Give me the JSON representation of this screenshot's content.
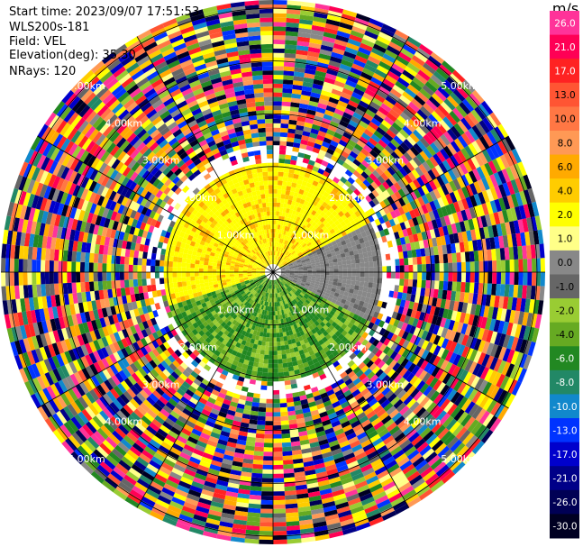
{
  "plot": {
    "start_time": "Start time: 2023/09/07 17:51:53",
    "instrument": "WLS200s-181",
    "field": "Field: VEL",
    "elevation": "Elevation(deg): 35.30",
    "nrays": "NRays: 120"
  },
  "colorbar": {
    "unit": "m/s",
    "levels": [
      {
        "label": "26.0",
        "color": "#ff3399"
      },
      {
        "label": "21.0",
        "color": "#ff0055"
      },
      {
        "label": "17.0",
        "color": "#ff2222"
      },
      {
        "label": "13.0",
        "color": "#ff5533"
      },
      {
        "label": "10.0",
        "color": "#ff7744"
      },
      {
        "label": "8.0",
        "color": "#ff9955"
      },
      {
        "label": "6.0",
        "color": "#ffaa00"
      },
      {
        "label": "4.0",
        "color": "#ffcc00"
      },
      {
        "label": "2.0",
        "color": "#ffff00"
      },
      {
        "label": "1.0",
        "color": "#ffff88"
      },
      {
        "label": "0.0",
        "color": "#888888"
      },
      {
        "label": "-1.0",
        "color": "#666666"
      },
      {
        "label": "-2.0",
        "color": "#99cc33"
      },
      {
        "label": "-4.0",
        "color": "#66aa22"
      },
      {
        "label": "-6.0",
        "color": "#228822"
      },
      {
        "label": "-8.0",
        "color": "#228866"
      },
      {
        "label": "-10.0",
        "color": "#1188cc"
      },
      {
        "label": "-13.0",
        "color": "#0033ff"
      },
      {
        "label": "-17.0",
        "color": "#0000cc"
      },
      {
        "label": "-21.0",
        "color": "#000088"
      },
      {
        "label": "-26.0",
        "color": "#000055"
      },
      {
        "label": "-30.0",
        "color": "#000022"
      }
    ]
  },
  "chart_data": {
    "type": "heatmap",
    "title": "",
    "field": "VEL",
    "units": "m/s",
    "elevation_deg": 35.3,
    "n_rays": 120,
    "range_ring_labels": [
      "1.00km",
      "2.00km",
      "3.00km",
      "4.00km",
      "5.00km"
    ],
    "range_rings_km": [
      1,
      2,
      3,
      4,
      5
    ],
    "max_range_km": 5.0,
    "near_field": [
      {
        "sector": "north-west",
        "range_km": [
          0,
          2.0
        ],
        "velocity_ms": [
          2.0,
          6.0
        ],
        "dominant": "yellow/orange"
      },
      {
        "sector": "south",
        "range_km": [
          0,
          2.0
        ],
        "velocity_ms": [
          -8.0,
          -2.0
        ],
        "dominant": "green"
      },
      {
        "sector": "east",
        "range_km": [
          0,
          1.8
        ],
        "velocity_ms": [
          -1.0,
          0.0
        ],
        "dominant": "gray"
      }
    ],
    "far_field": "noise (random colors) beyond about 2 km",
    "grid": true
  }
}
